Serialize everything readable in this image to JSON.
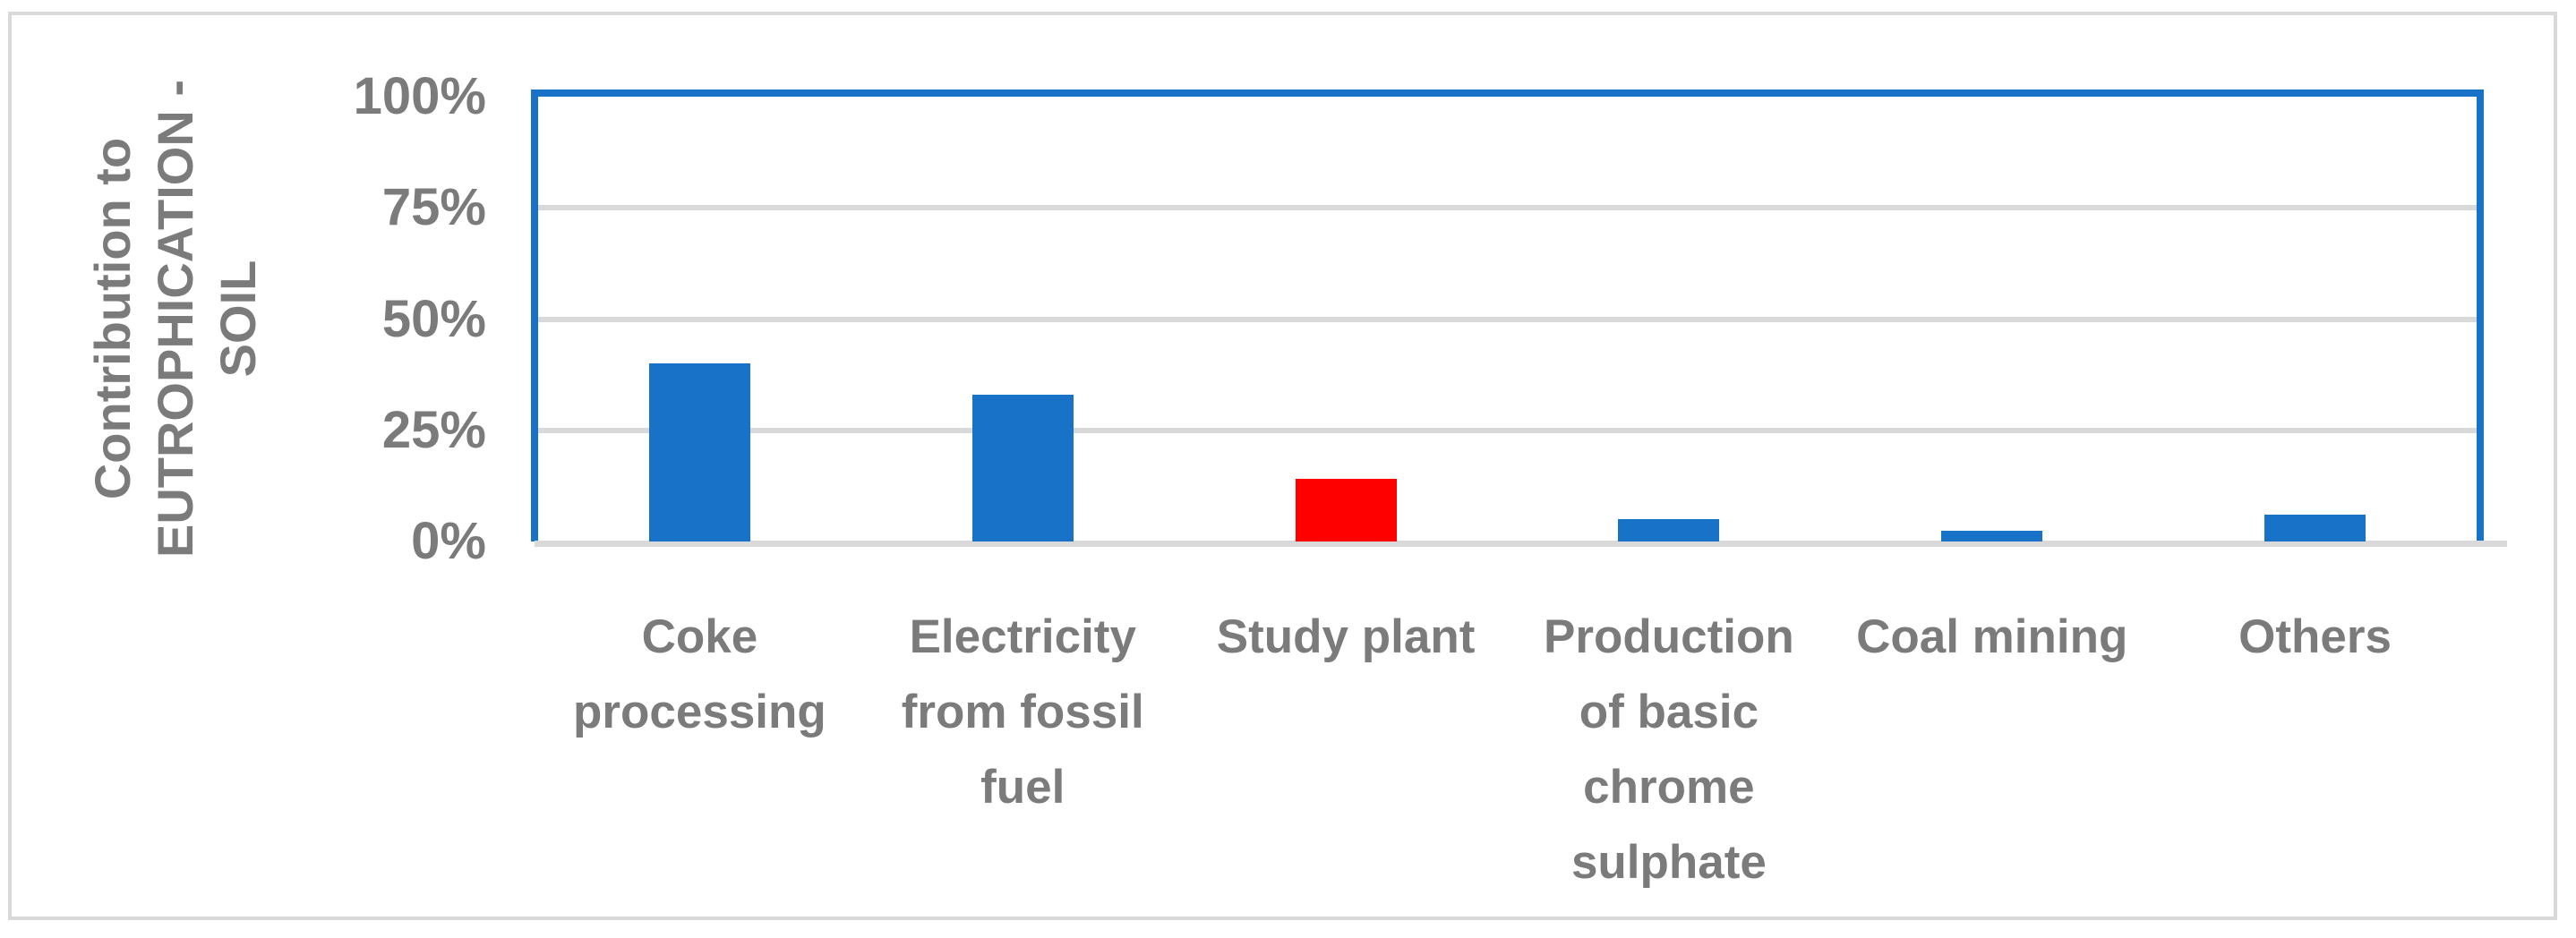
{
  "colors": {
    "bar_blue": "#1772C8",
    "bar_red": "#FF0000",
    "plot_border": "#1772C8",
    "gridline": "#D9D9D9",
    "axis_text": "#7B7B7B",
    "figure_border": "#D9D9D9"
  },
  "chart_data": {
    "type": "bar",
    "title": "",
    "ylabel": "Contribution to EUTROPHICATION - SOIL",
    "ylabel_display": "Contribution to\nEUTROPHICATION -\nSOIL",
    "xlabel": "",
    "categories": [
      "Coke processing",
      "Electricity from fossil fuel",
      "Study plant",
      "Production of basic chrome sulphate",
      "Coal mining",
      "Others"
    ],
    "categories_display": [
      "Coke\nprocessing",
      "Electricity\nfrom fossil\nfuel",
      "Study plant",
      "Production\nof basic\nchrome\nsulphate",
      "Coal mining",
      "Others"
    ],
    "values": [
      40,
      33,
      14,
      5,
      2.5,
      6
    ],
    "unit": "%",
    "bar_colors": [
      "#1772C8",
      "#1772C8",
      "#FF0000",
      "#1772C8",
      "#1772C8",
      "#1772C8"
    ],
    "highlight_index": 2,
    "yticks": [
      "100%",
      "75%",
      "50%",
      "25%",
      "0%"
    ],
    "ytick_values": [
      100,
      75,
      50,
      25,
      0
    ],
    "ylim": [
      0,
      100
    ],
    "grid": true,
    "legend": null
  }
}
